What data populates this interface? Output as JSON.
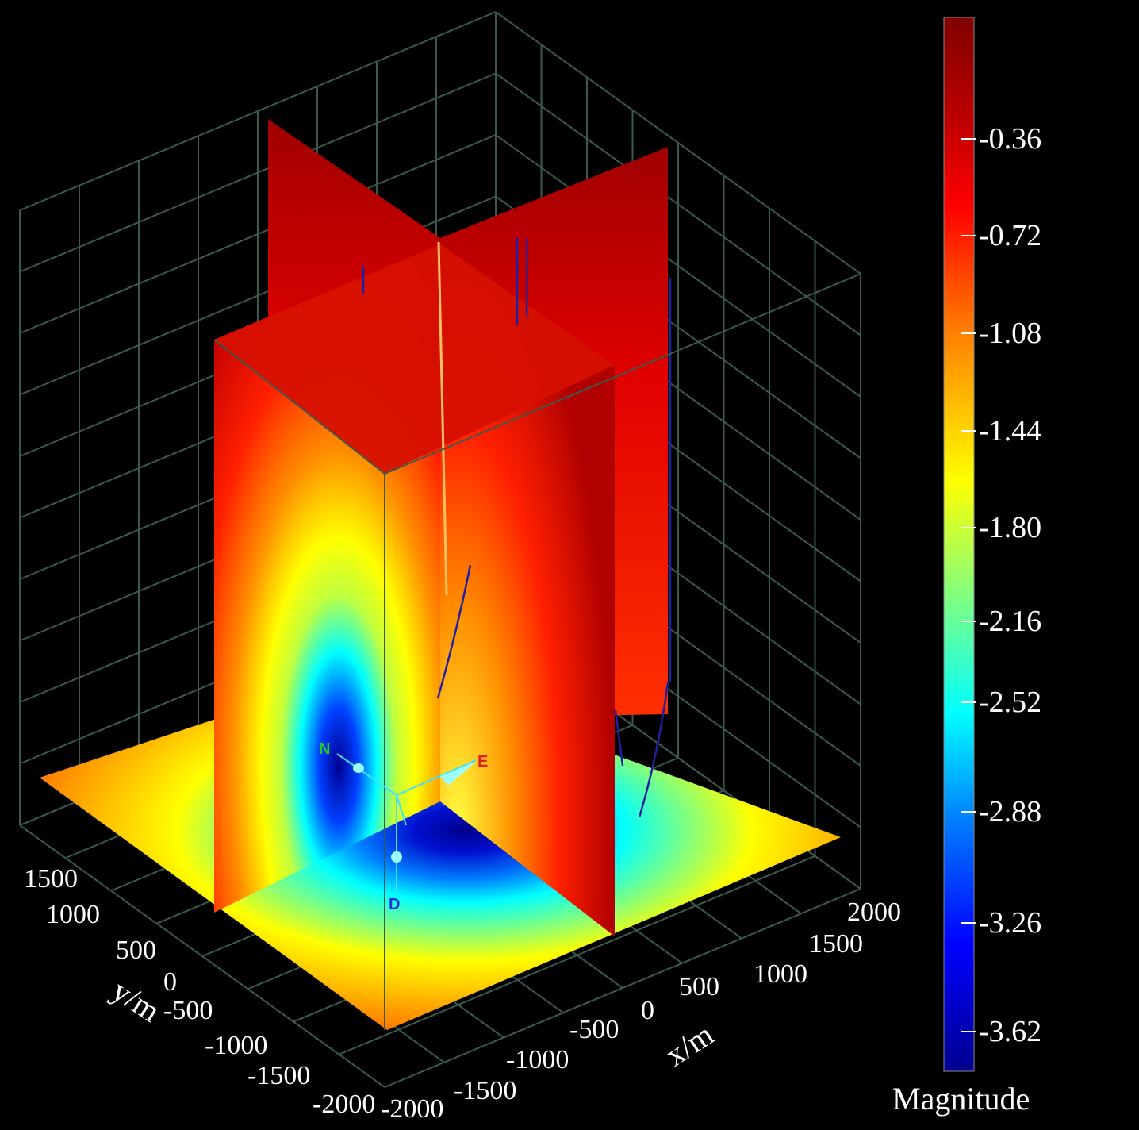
{
  "chart_data": {
    "type": "heatmap",
    "subtype": "3d-slice-volume",
    "x_axis": {
      "label": "x/m",
      "ticks": [
        -2000,
        -1500,
        -1000,
        -500,
        0,
        500,
        1000,
        1500,
        2000
      ]
    },
    "y_axis": {
      "label": "y/m",
      "ticks": [
        1500,
        1000,
        500,
        0,
        -500,
        -1000,
        -1500,
        -2000
      ]
    },
    "colorbar": {
      "label": "Magnitude",
      "ticks": [
        "-0.36",
        "-0.72",
        "-1.08",
        "-1.44",
        "-1.80",
        "-2.16",
        "-2.52",
        "-2.88",
        "-3.26",
        "-3.62"
      ],
      "range": [
        -3.8,
        -0.1
      ],
      "colormap": [
        "#7f0000",
        "#ff0000",
        "#ff8000",
        "#ffff00",
        "#80ff80",
        "#00ffff",
        "#0080ff",
        "#0000ff",
        "#00008f"
      ]
    },
    "orientation_labels": {
      "north": "N",
      "east": "E",
      "down": "D"
    },
    "minimum_location": "center of bottom slice, magnitude ≈ -3.7",
    "grid": true,
    "background": "#000000"
  }
}
